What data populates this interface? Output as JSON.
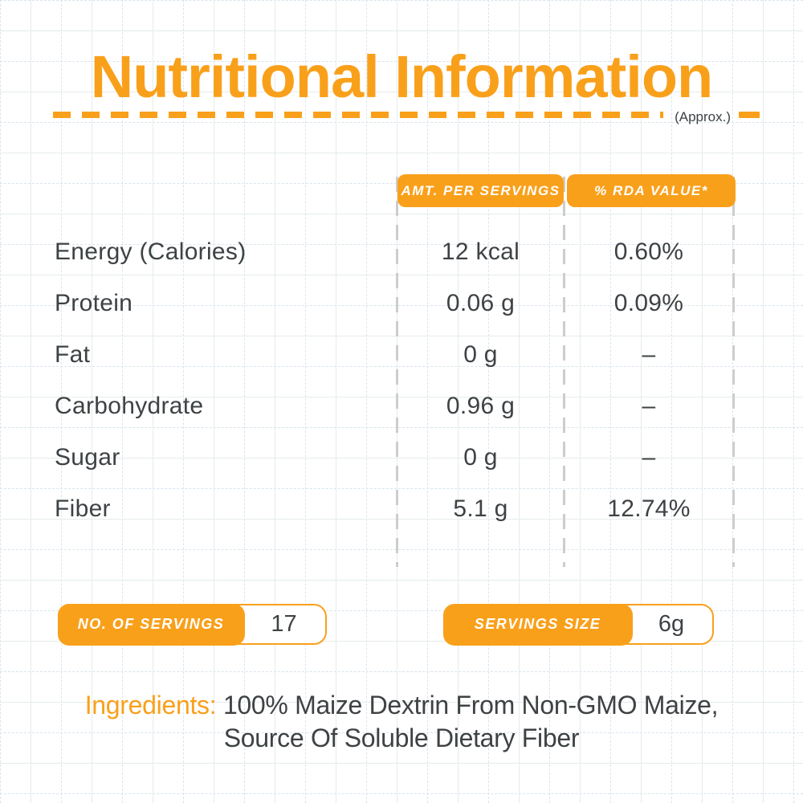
{
  "page": {
    "title": "Nutritional Information",
    "approx_note": "(Approx.)"
  },
  "table": {
    "headers": [
      {
        "label": "AMT. PER SERVINGS"
      },
      {
        "label": "% RDA VALUE*"
      }
    ],
    "rows": [
      {
        "nutrient": "Energy (Calories)",
        "amount": "12 kcal",
        "rda": "0.60%"
      },
      {
        "nutrient": "Protein",
        "amount": "0.06 g",
        "rda": "0.09%"
      },
      {
        "nutrient": "Fat",
        "amount": "0 g",
        "rda": "–"
      },
      {
        "nutrient": "Carbohydrate",
        "amount": "0.96 g",
        "rda": "–"
      },
      {
        "nutrient": "Sugar",
        "amount": "0 g",
        "rda": "–"
      },
      {
        "nutrient": "Fiber",
        "amount": "5.1 g",
        "rda": "12.74%"
      }
    ]
  },
  "badges": {
    "servings_count": {
      "label": "NO. OF SERVINGS",
      "value": "17"
    },
    "serving_size": {
      "label": "SERVINGS SIZE",
      "value": "6g"
    }
  },
  "ingredients": {
    "label": "Ingredients:",
    "line1": "100% Maize Dextrin From Non-GMO Maize,",
    "line2": "Source Of Soluble Dietary Fiber"
  },
  "colors": {
    "accent_orange": "#F9A01B",
    "text_dark": "#3E4244",
    "separator_gray": "#CDCDCD",
    "grid_solid": "#E4EDEA",
    "grid_dashed": "#D9E5EF"
  }
}
